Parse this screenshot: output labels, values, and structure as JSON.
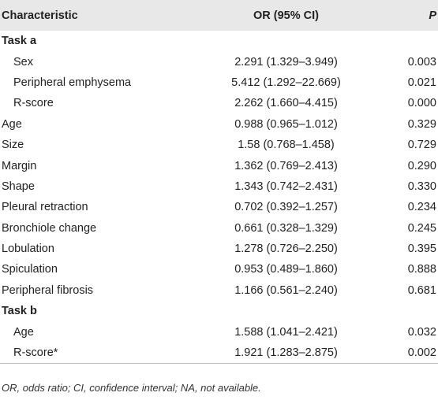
{
  "table": {
    "headers": {
      "characteristic": "Characteristic",
      "or": "OR (95% CI)",
      "p": "P"
    },
    "rows": [
      {
        "type": "section",
        "label": "Task a"
      },
      {
        "type": "data",
        "indent": true,
        "label": "Sex",
        "or": "2.291 (1.329–3.949)",
        "p": "0.003"
      },
      {
        "type": "data",
        "indent": true,
        "label": "Peripheral emphysema",
        "or": "5.412 (1.292–22.669)",
        "p": "0.021"
      },
      {
        "type": "data",
        "indent": true,
        "label": "R-score",
        "or": "2.262 (1.660–4.415)",
        "p": "0.000"
      },
      {
        "type": "data",
        "indent": false,
        "label": "Age",
        "or": "0.988 (0.965–1.012)",
        "p": "0.329"
      },
      {
        "type": "data",
        "indent": false,
        "label": "Size",
        "or": "1.58 (0.768–1.458)",
        "p": "0.729"
      },
      {
        "type": "data",
        "indent": false,
        "label": "Margin",
        "or": "1.362 (0.769–2.413)",
        "p": "0.290"
      },
      {
        "type": "data",
        "indent": false,
        "label": "Shape",
        "or": "1.343 (0.742–2.431)",
        "p": "0.330"
      },
      {
        "type": "data",
        "indent": false,
        "label": "Pleural retraction",
        "or": "0.702 (0.392–1.257)",
        "p": "0.234"
      },
      {
        "type": "data",
        "indent": false,
        "label": "Bronchiole change",
        "or": "0.661 (0.328–1.329)",
        "p": "0.245"
      },
      {
        "type": "data",
        "indent": false,
        "label": "Lobulation",
        "or": "1.278 (0.726–2.250)",
        "p": "0.395"
      },
      {
        "type": "data",
        "indent": false,
        "label": "Spiculation",
        "or": "0.953 (0.489–1.860)",
        "p": "0.888"
      },
      {
        "type": "data",
        "indent": false,
        "label": "Peripheral fibrosis",
        "or": "1.166 (0.561–2.240)",
        "p": "0.681"
      },
      {
        "type": "section",
        "label": "Task b"
      },
      {
        "type": "data",
        "indent": true,
        "label": "Age",
        "or": "1.588 (1.041–2.421)",
        "p": "0.032"
      },
      {
        "type": "data",
        "indent": true,
        "label": "R-score*",
        "or": "1.921 (1.283–2.875)",
        "p": "0.002"
      }
    ]
  },
  "footnote": "OR, odds ratio; CI, confidence interval; NA, not available."
}
